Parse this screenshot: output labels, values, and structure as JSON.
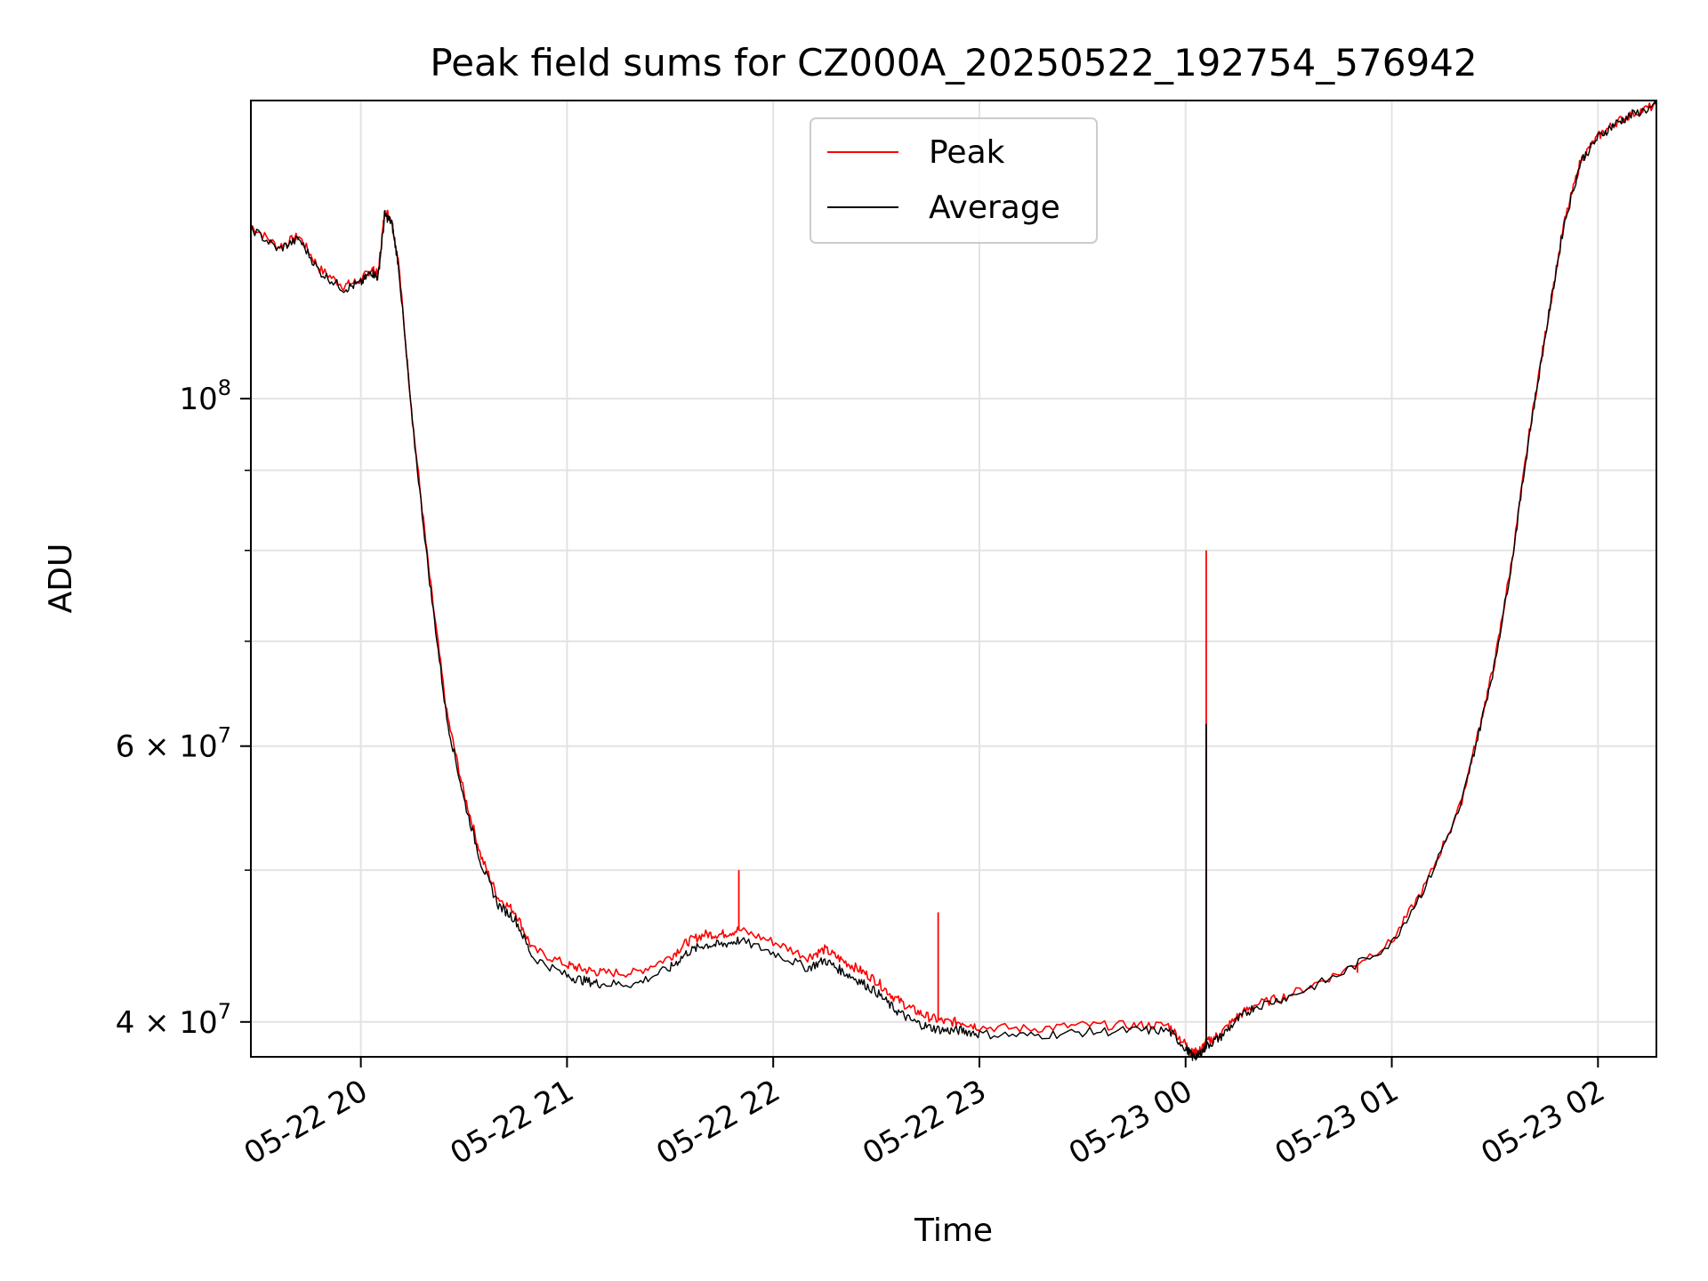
{
  "chart_data": {
    "type": "line",
    "title": "Peak field sums for CZ000A_20250522_192754_576942",
    "xlabel": "Time",
    "ylabel": "ADU",
    "yscale": "log",
    "ylim": [
      38000000,
      155000000
    ],
    "xlim": [
      "2025-05-22 19:28",
      "2025-05-23 02:17"
    ],
    "grid": true,
    "legend_position": "upper center",
    "xticks": [
      {
        "t": "2025-05-22 20:00",
        "label": "05-22 20"
      },
      {
        "t": "2025-05-22 21:00",
        "label": "05-22 21"
      },
      {
        "t": "2025-05-22 22:00",
        "label": "05-22 22"
      },
      {
        "t": "2025-05-22 23:00",
        "label": "05-22 23"
      },
      {
        "t": "2025-05-23 00:00",
        "label": "05-23 00"
      },
      {
        "t": "2025-05-23 01:00",
        "label": "05-23 01"
      },
      {
        "t": "2025-05-23 02:00",
        "label": "05-23 02"
      }
    ],
    "yticks_major": [
      {
        "v": 40000000,
        "base": "4 × 10",
        "exp": "7"
      },
      {
        "v": 60000000,
        "base": "6 × 10",
        "exp": "7"
      },
      {
        "v": 100000000,
        "base": "10",
        "exp": "8"
      }
    ],
    "yticks_minor": [
      50000000,
      70000000,
      80000000,
      90000000
    ],
    "series": [
      {
        "name": "Peak",
        "color": "#ff0000",
        "x": [
          "2025-05-22 19:28",
          "2025-05-22 19:36",
          "2025-05-22 19:42",
          "2025-05-22 19:48",
          "2025-05-22 19:55",
          "2025-05-22 20:00",
          "2025-05-22 20:03",
          "2025-05-22 20:05",
          "2025-05-22 20:07",
          "2025-05-22 20:09",
          "2025-05-22 20:11",
          "2025-05-22 20:15",
          "2025-05-22 20:20",
          "2025-05-22 20:25",
          "2025-05-22 20:30",
          "2025-05-22 20:35",
          "2025-05-22 20:40",
          "2025-05-22 20:45",
          "2025-05-22 20:50",
          "2025-05-22 21:00",
          "2025-05-22 21:05",
          "2025-05-22 21:10",
          "2025-05-22 21:20",
          "2025-05-22 21:30",
          "2025-05-22 21:35",
          "2025-05-22 21:40",
          "2025-05-22 21:45",
          "2025-05-22 21:50",
          "2025-05-22 22:00",
          "2025-05-22 22:10",
          "2025-05-22 22:15",
          "2025-05-22 22:20",
          "2025-05-22 22:25",
          "2025-05-22 22:30",
          "2025-05-22 22:35",
          "2025-05-22 22:40",
          "2025-05-22 22:45",
          "2025-05-22 22:50",
          "2025-05-22 22:55",
          "2025-05-22 23:00",
          "2025-05-22 23:15",
          "2025-05-22 23:30",
          "2025-05-22 23:45",
          "2025-05-22 23:55",
          "2025-05-23 00:00",
          "2025-05-23 00:02",
          "2025-05-23 00:04",
          "2025-05-23 00:06",
          "2025-05-23 00:10",
          "2025-05-23 00:15",
          "2025-05-23 00:20",
          "2025-05-23 00:30",
          "2025-05-23 00:45",
          "2025-05-23 01:00",
          "2025-05-23 01:10",
          "2025-05-23 01:20",
          "2025-05-23 01:25",
          "2025-05-23 01:30",
          "2025-05-23 01:35",
          "2025-05-23 01:40",
          "2025-05-23 01:45",
          "2025-05-23 01:50",
          "2025-05-23 01:55",
          "2025-05-23 02:00",
          "2025-05-23 02:05",
          "2025-05-23 02:10",
          "2025-05-23 02:17"
        ],
        "y": [
          129000000,
          125000000,
          127000000,
          121000000,
          118000000,
          119000000,
          121000000,
          120000000,
          132000000,
          130000000,
          122000000,
          97000000,
          77000000,
          63000000,
          56000000,
          51000000,
          48000000,
          47000000,
          44500000,
          43500000,
          43200000,
          43000000,
          43000000,
          44000000,
          45000000,
          45500000,
          45500000,
          45800000,
          45000000,
          44000000,
          44500000,
          43800000,
          43200000,
          42500000,
          41500000,
          40800000,
          40300000,
          40000000,
          40000000,
          39700000,
          39600000,
          39800000,
          39800000,
          39800000,
          38700000,
          38200000,
          38300000,
          38800000,
          39300000,
          40300000,
          41000000,
          41600000,
          43000000,
          45000000,
          49000000,
          55000000,
          61000000,
          68000000,
          79000000,
          95000000,
          111000000,
          129000000,
          142000000,
          147000000,
          150000000,
          152000000,
          154000000
        ],
        "spikes": [
          {
            "t": "2025-05-22 21:50",
            "y": 50000000
          },
          {
            "t": "2025-05-22 22:48",
            "y": 47000000
          },
          {
            "t": "2025-05-23 00:06",
            "y": 80000000
          },
          {
            "t": "2025-05-23 00:50",
            "y": 43000000
          }
        ]
      },
      {
        "name": "Average",
        "color": "#000000",
        "x": [
          "2025-05-22 19:28",
          "2025-05-22 19:36",
          "2025-05-22 19:42",
          "2025-05-22 19:48",
          "2025-05-22 19:55",
          "2025-05-22 20:00",
          "2025-05-22 20:03",
          "2025-05-22 20:05",
          "2025-05-22 20:07",
          "2025-05-22 20:09",
          "2025-05-22 20:11",
          "2025-05-22 20:15",
          "2025-05-22 20:20",
          "2025-05-22 20:25",
          "2025-05-22 20:30",
          "2025-05-22 20:35",
          "2025-05-22 20:40",
          "2025-05-22 20:45",
          "2025-05-22 20:50",
          "2025-05-22 21:00",
          "2025-05-22 21:05",
          "2025-05-22 21:10",
          "2025-05-22 21:20",
          "2025-05-22 21:30",
          "2025-05-22 21:35",
          "2025-05-22 21:40",
          "2025-05-22 21:45",
          "2025-05-22 21:50",
          "2025-05-22 22:00",
          "2025-05-22 22:10",
          "2025-05-22 22:15",
          "2025-05-22 22:20",
          "2025-05-22 22:25",
          "2025-05-22 22:30",
          "2025-05-22 22:35",
          "2025-05-22 22:40",
          "2025-05-22 22:45",
          "2025-05-22 22:50",
          "2025-05-22 22:55",
          "2025-05-22 23:00",
          "2025-05-22 23:15",
          "2025-05-22 23:30",
          "2025-05-22 23:45",
          "2025-05-22 23:55",
          "2025-05-23 00:00",
          "2025-05-23 00:02",
          "2025-05-23 00:04",
          "2025-05-23 00:06",
          "2025-05-23 00:10",
          "2025-05-23 00:15",
          "2025-05-23 00:20",
          "2025-05-23 00:30",
          "2025-05-23 00:45",
          "2025-05-23 01:00",
          "2025-05-23 01:10",
          "2025-05-23 01:20",
          "2025-05-23 01:25",
          "2025-05-23 01:30",
          "2025-05-23 01:35",
          "2025-05-23 01:40",
          "2025-05-23 01:45",
          "2025-05-23 01:50",
          "2025-05-23 01:55",
          "2025-05-23 02:00",
          "2025-05-23 02:05",
          "2025-05-23 02:10",
          "2025-05-23 02:17"
        ],
        "y": [
          128500000,
          124500000,
          126500000,
          120500000,
          117500000,
          118500000,
          120500000,
          119500000,
          131000000,
          129500000,
          121500000,
          96500000,
          76500000,
          62500000,
          55500000,
          50500000,
          47500000,
          46500000,
          44000000,
          42800000,
          42500000,
          42300000,
          42300000,
          43300000,
          44300000,
          44800000,
          44800000,
          45100000,
          44300000,
          43300000,
          43800000,
          43100000,
          42500000,
          41800000,
          40800000,
          40100000,
          39700000,
          39500000,
          39500000,
          39300000,
          39200000,
          39400000,
          39500000,
          39500000,
          38500000,
          38000000,
          38100000,
          38600000,
          39100000,
          40100000,
          40900000,
          41500000,
          42900000,
          44900000,
          48900000,
          54900000,
          60800000,
          67800000,
          78800000,
          94800000,
          110800000,
          128800000,
          141800000,
          146800000,
          149800000,
          151800000,
          153800000
        ],
        "spikes": [
          {
            "t": "2025-05-23 00:06",
            "y": 62000000
          }
        ]
      }
    ]
  }
}
